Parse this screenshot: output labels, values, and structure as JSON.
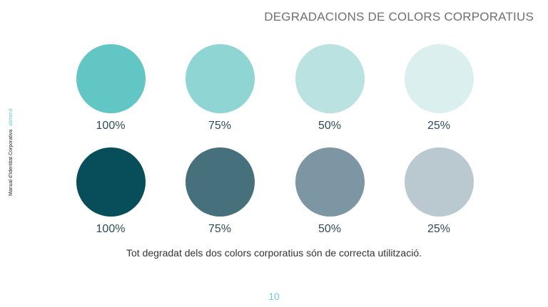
{
  "title": "DEGRADACIONS DE COLORS CORPORATIUS",
  "sidebar": {
    "manual_label": "Manual d'Identitat Corporativa",
    "brand_label": "alimend"
  },
  "rows": [
    {
      "swatches": [
        {
          "label": "100%",
          "color": "#62c6c5",
          "text_color": "#2f4b58"
        },
        {
          "label": "75%",
          "color": "#8fd5d3",
          "text_color": "#2f4b58"
        },
        {
          "label": "50%",
          "color": "#b9e2e1",
          "text_color": "#2f4b58"
        },
        {
          "label": "25%",
          "color": "#dcefef",
          "text_color": "#2f4b58"
        }
      ]
    },
    {
      "swatches": [
        {
          "label": "100%",
          "color": "#074e5a",
          "text_color": "#2f4b58"
        },
        {
          "label": "75%",
          "color": "#46717c",
          "text_color": "#2f4b58"
        },
        {
          "label": "50%",
          "color": "#7c97a3",
          "text_color": "#2f4b58"
        },
        {
          "label": "25%",
          "color": "#bac8d0",
          "text_color": "#2f4b58"
        }
      ]
    }
  ],
  "note": "Tot degradat dels dos colors corporatius són de correcta utilització.",
  "page_number": "10"
}
